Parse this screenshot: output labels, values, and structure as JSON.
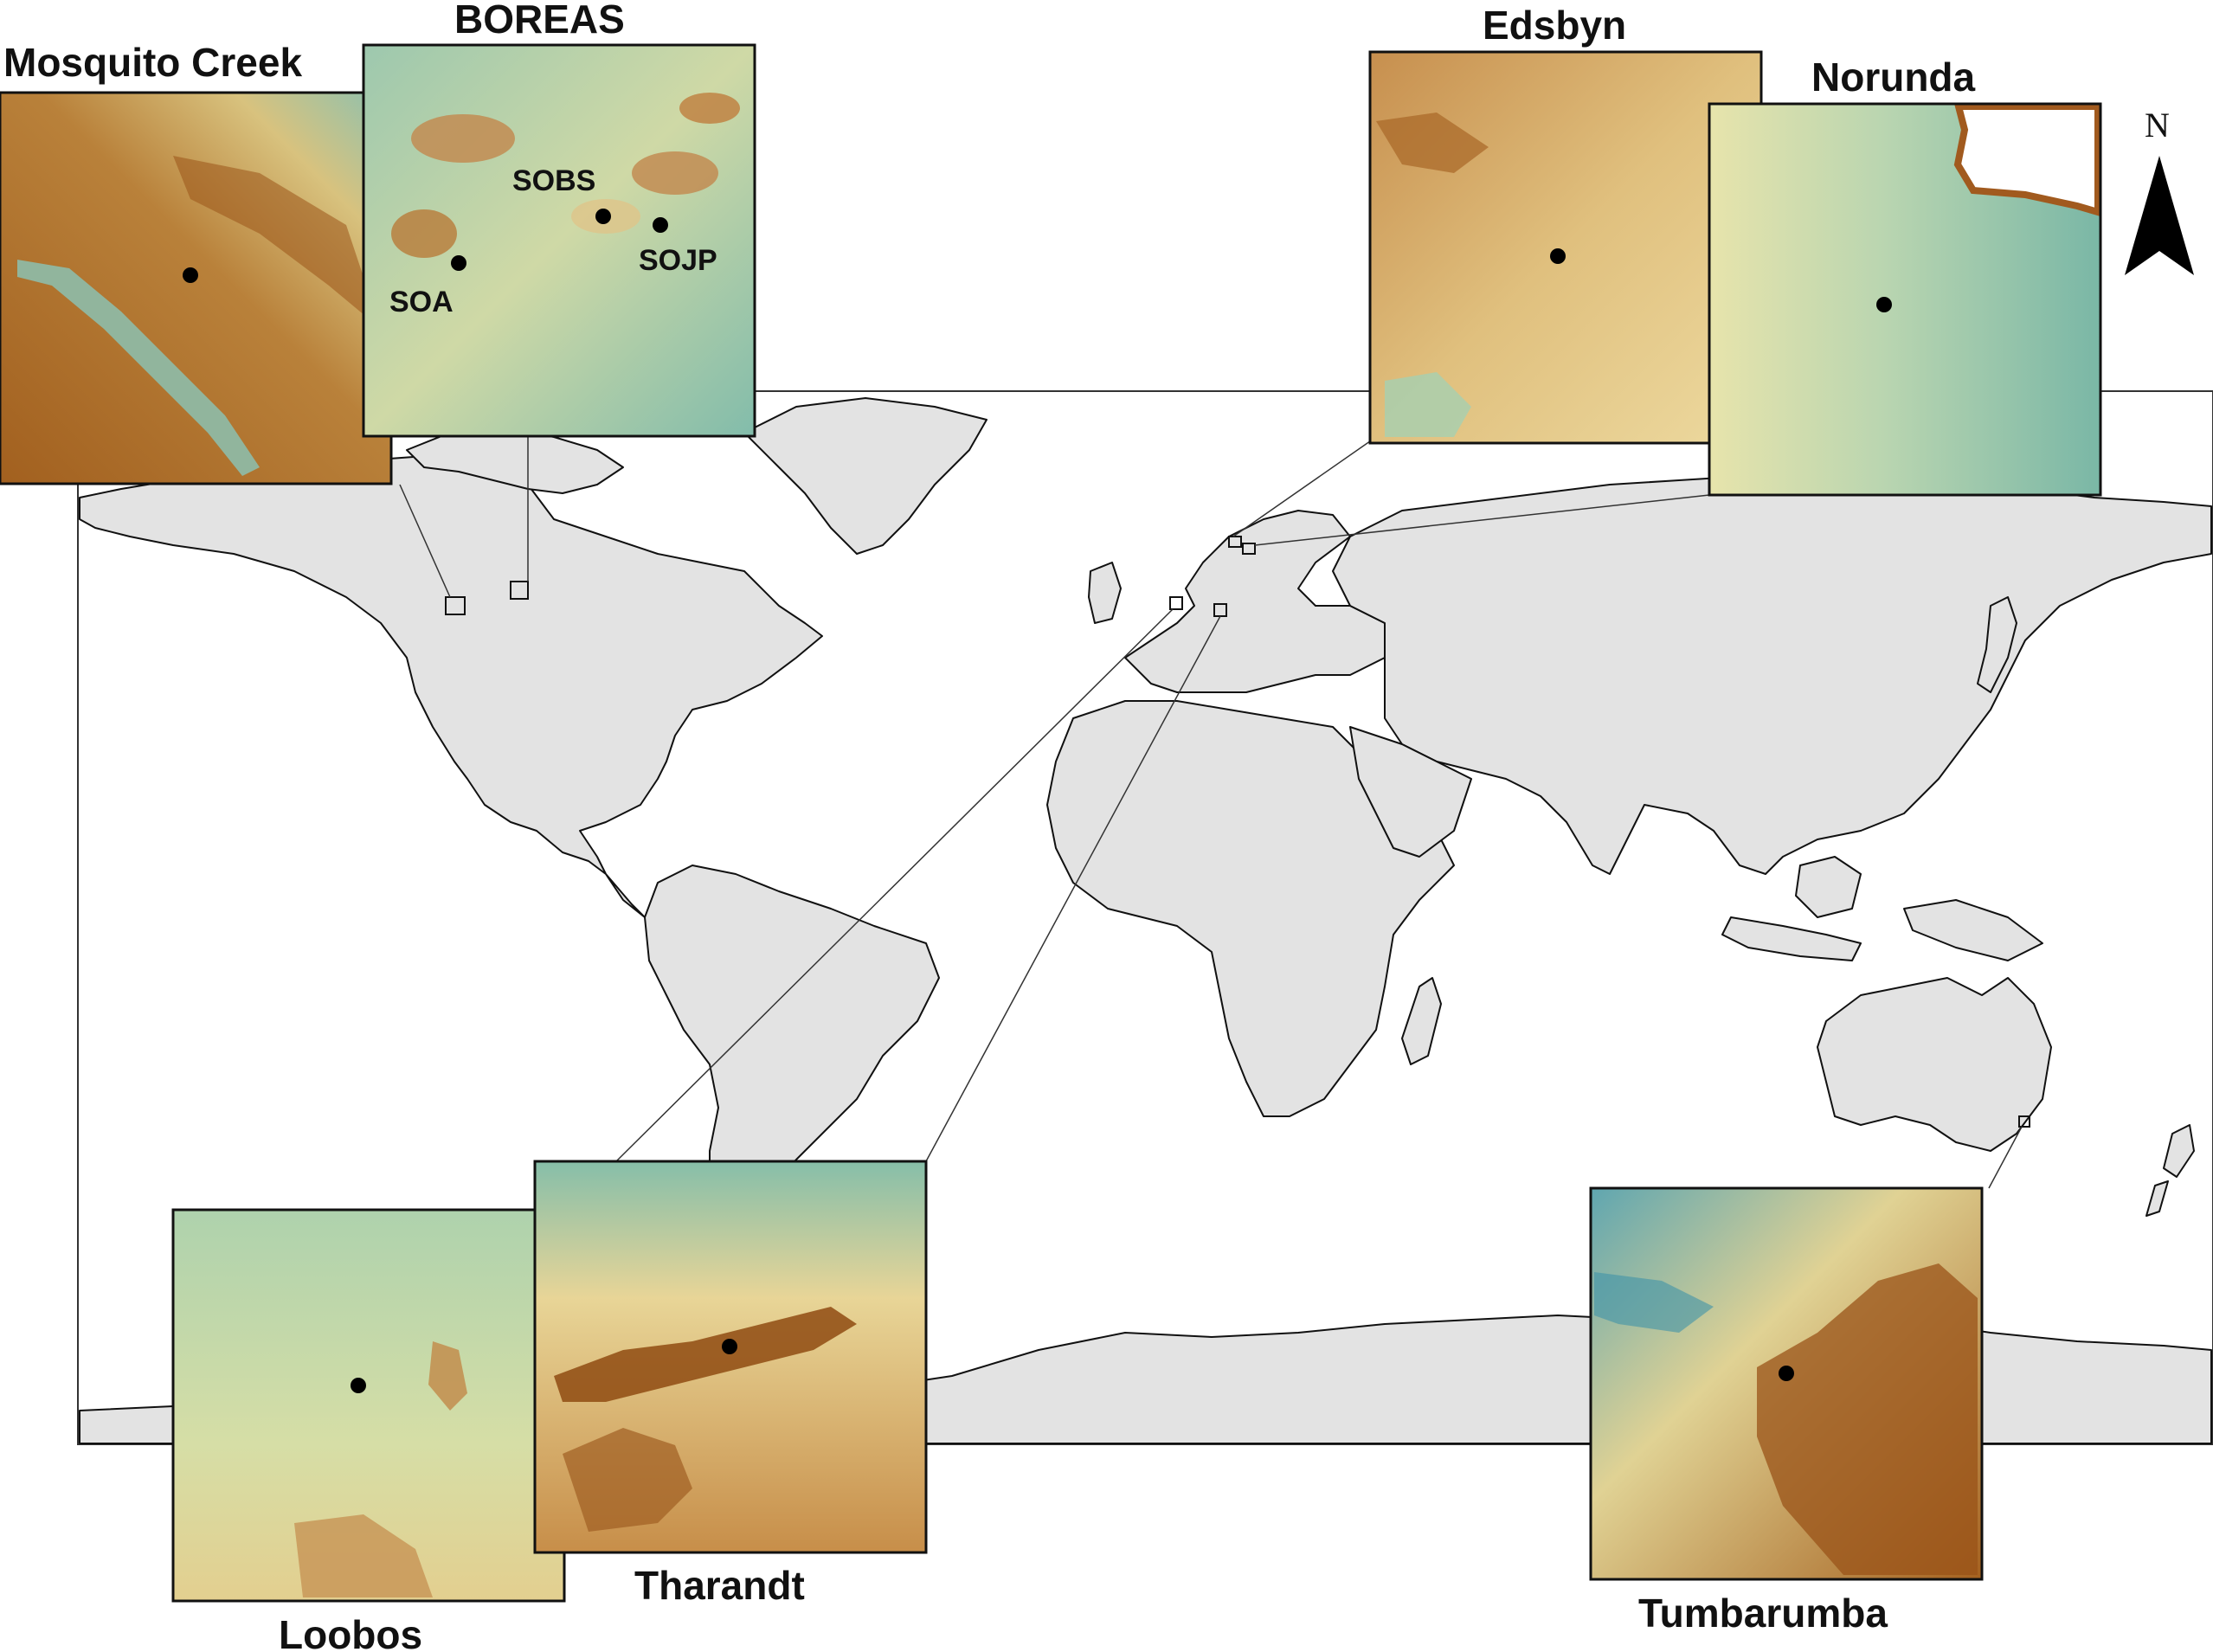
{
  "map": {
    "type": "world map with site inset terrain maps",
    "north_arrow_label": "N",
    "colors": {
      "land": "#e3e3e3",
      "coastline": "#111111",
      "terrain_low": "#79b8a8",
      "terrain_mid": "#efe3a6",
      "terrain_high": "#a15a1e",
      "site_marker": "#000000"
    }
  },
  "insets": [
    {
      "id": "mosquito-creek",
      "label": "Mosquito Creek",
      "terrain": "mountain_valley"
    },
    {
      "id": "boreas",
      "label": "BOREAS",
      "terrain": "lowland_patches",
      "sub_sites": [
        "SOBS",
        "SOJP",
        "SOA"
      ]
    },
    {
      "id": "edsbyn",
      "label": "Edsbyn",
      "terrain": "rolling_hills"
    },
    {
      "id": "norunda",
      "label": "Norunda",
      "terrain": "coastal_lowland"
    },
    {
      "id": "loobos",
      "label": "Loobos",
      "terrain": "flat_lowland"
    },
    {
      "id": "tharandt",
      "label": "Tharandt",
      "terrain": "ridge"
    },
    {
      "id": "tumbarumba",
      "label": "Tumbarumba",
      "terrain": "highland"
    }
  ]
}
